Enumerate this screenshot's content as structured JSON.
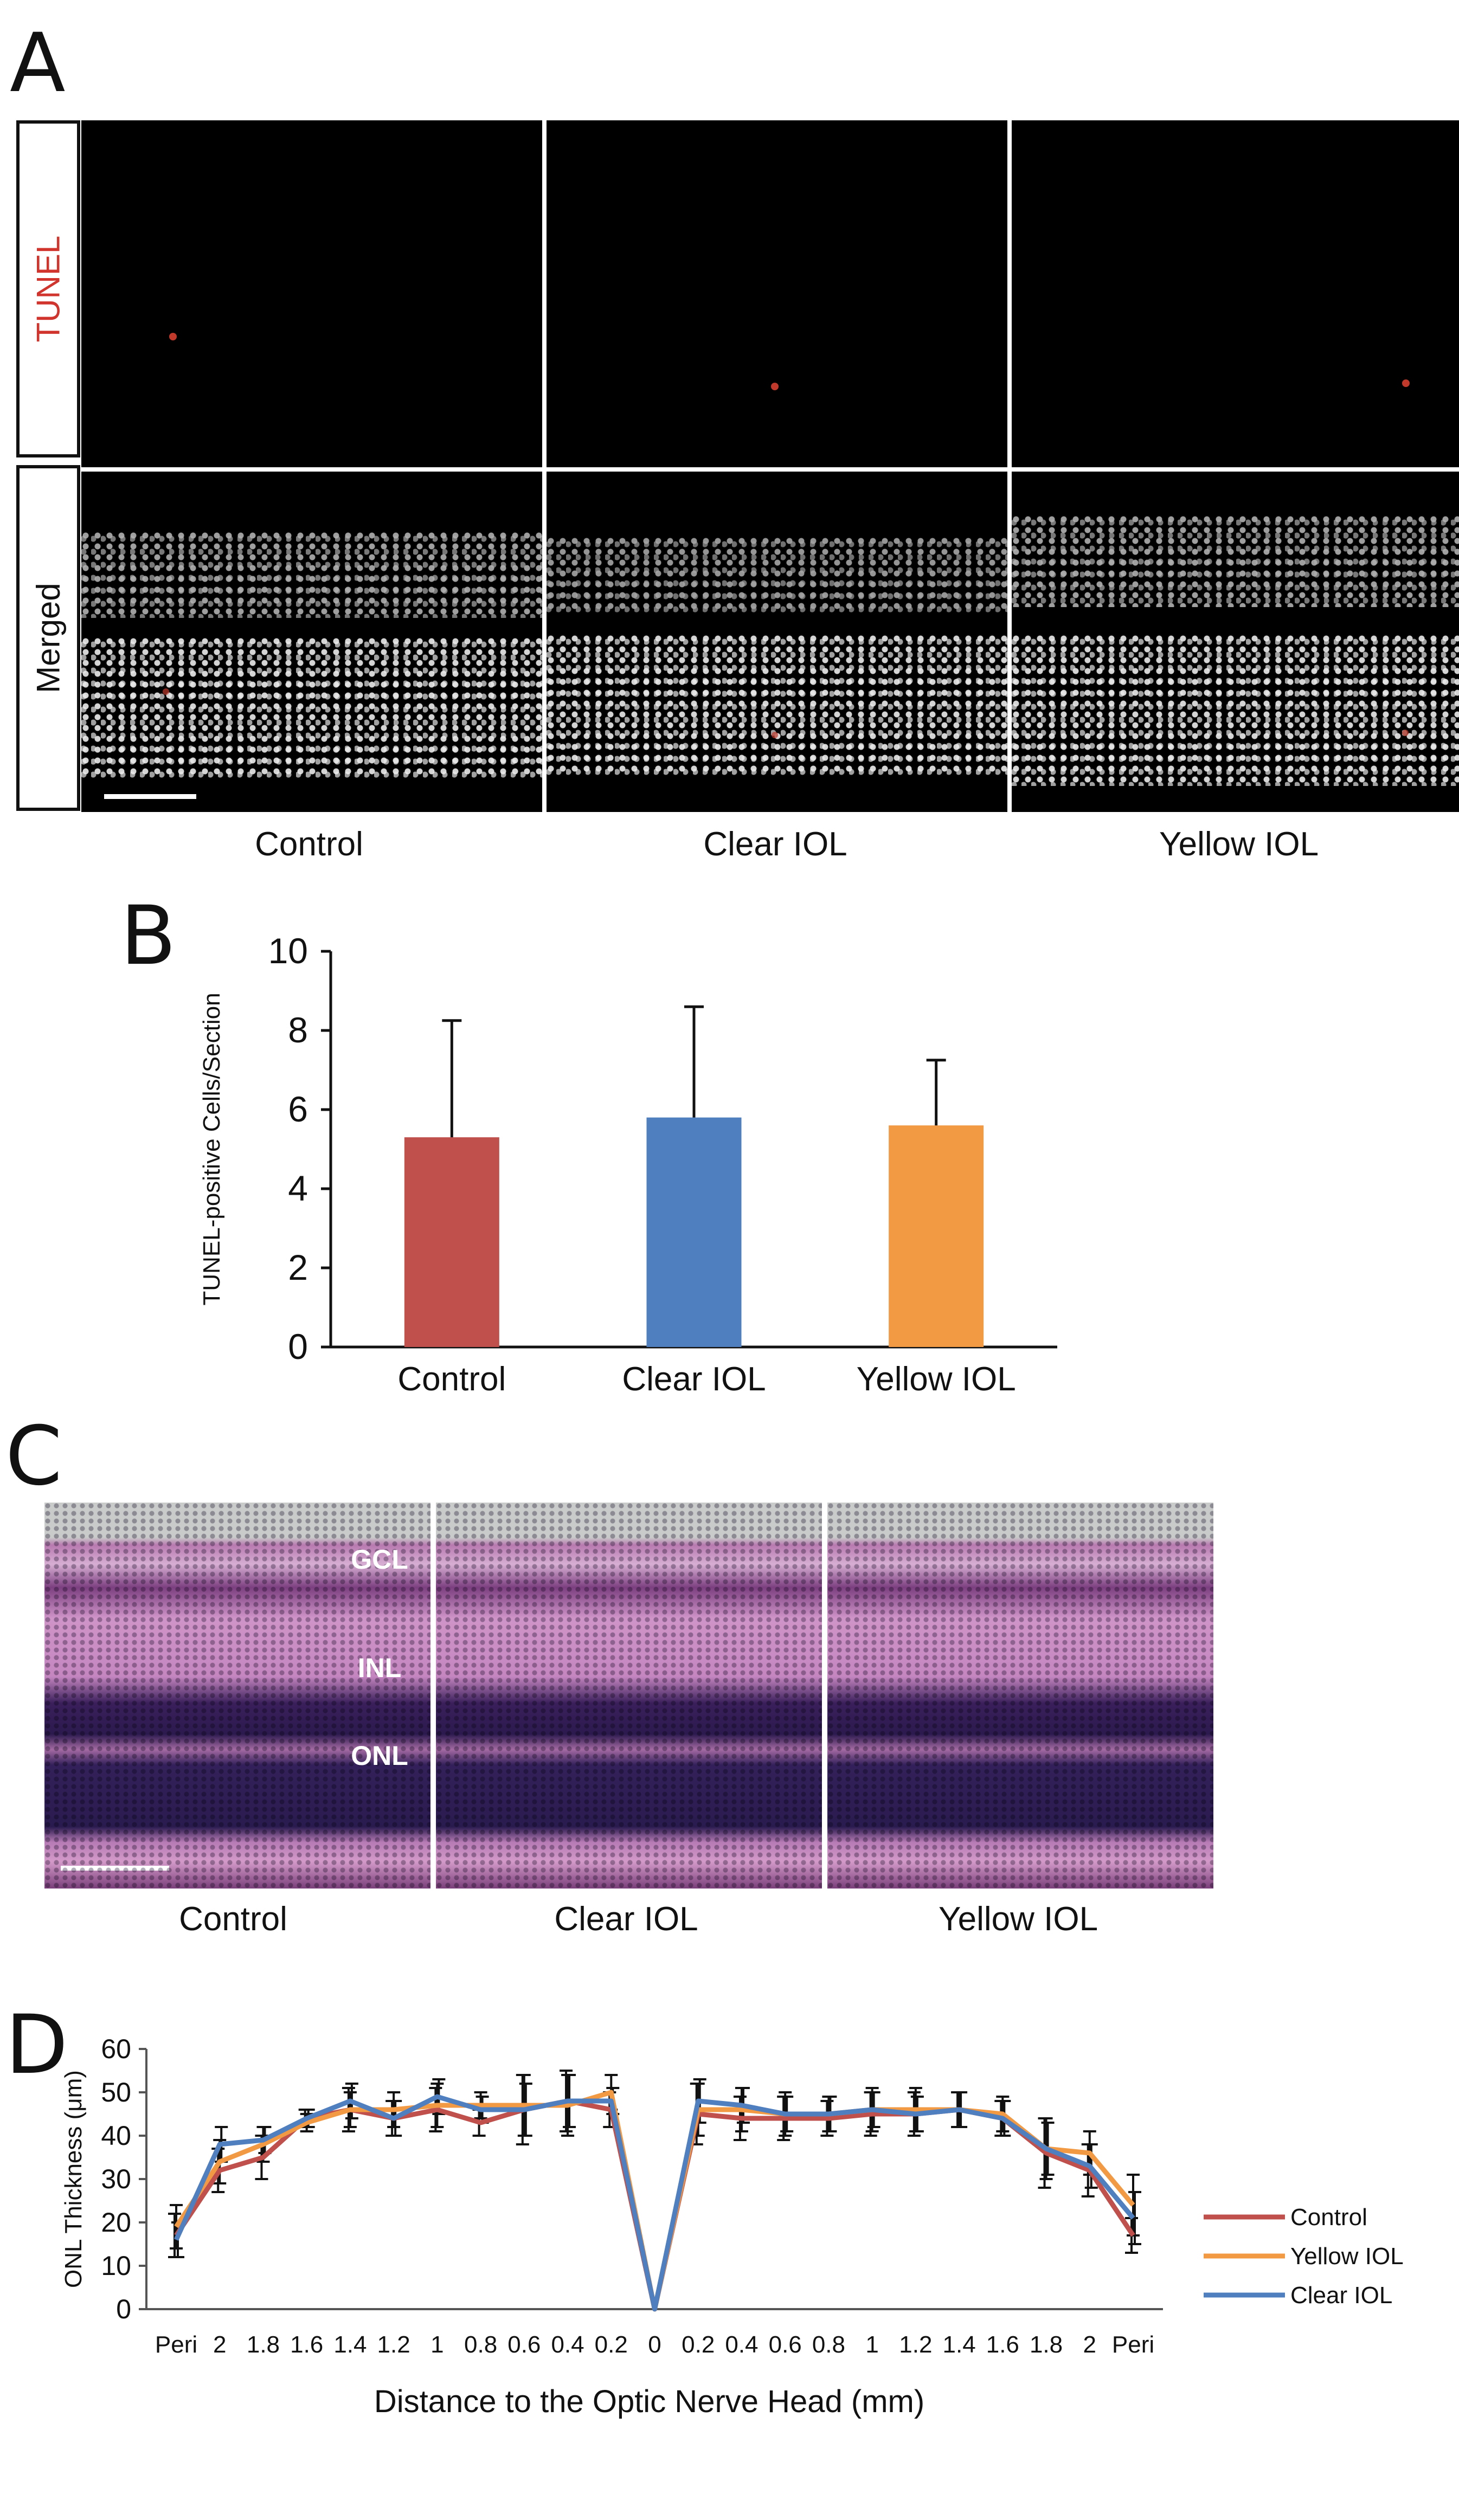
{
  "panel_a": {
    "letter": "A",
    "row_labels": [
      "TUNEL",
      "Merged"
    ],
    "row_label_colors": [
      "#d0342c",
      "#111111"
    ],
    "conditions": [
      "Control",
      "Clear IOL",
      "Yellow IOL"
    ]
  },
  "panel_b": {
    "letter": "B"
  },
  "panel_c": {
    "letter": "C",
    "layer_labels": [
      "GCL",
      "INL",
      "ONL"
    ],
    "conditions": [
      "Control",
      "Clear IOL",
      "Yellow IOL"
    ]
  },
  "panel_d": {
    "letter": "D"
  },
  "chart_data": [
    {
      "type": "bar",
      "panel": "B",
      "categories": [
        "Control",
        "Clear IOL",
        "Yellow IOL"
      ],
      "values": [
        5.3,
        5.8,
        5.6
      ],
      "errors": [
        2.95,
        2.8,
        1.65
      ],
      "colors": [
        "#bf504c",
        "#4f7fbe",
        "#f29944"
      ],
      "ylabel": "TUNEL-positive Cells/Section",
      "ylim": [
        0,
        10
      ],
      "yticks": [
        0,
        2,
        4,
        6,
        8,
        10
      ],
      "grid": false
    },
    {
      "type": "line",
      "panel": "D",
      "categories": [
        "Peri",
        "2",
        "1.8",
        "1.6",
        "1.4",
        "1.2",
        "1",
        "0.8",
        "0.6",
        "0.4",
        "0.2",
        "0",
        "0.2",
        "0.4",
        "0.6",
        "0.8",
        "1",
        "1.2",
        "1.4",
        "1.6",
        "1.8",
        "2",
        "Peri"
      ],
      "series": [
        {
          "name": "Control",
          "color": "#bf504c",
          "values": [
            17,
            32,
            35,
            44,
            46,
            44,
            46,
            43,
            46,
            48,
            46,
            0,
            45,
            44,
            44,
            44,
            45,
            45,
            46,
            44,
            36,
            32,
            17
          ],
          "errors": [
            5,
            5,
            5,
            2,
            5,
            4,
            5,
            3,
            8,
            7,
            4,
            0,
            7,
            5,
            5,
            4,
            5,
            5,
            4,
            4,
            8,
            6,
            4
          ]
        },
        {
          "name": "Yellow IOL",
          "color": "#f29944",
          "values": [
            19,
            34,
            38,
            43,
            46,
            46,
            47,
            47,
            47,
            47,
            50,
            0,
            46,
            46,
            45,
            45,
            46,
            46,
            46,
            45,
            37,
            36,
            24
          ],
          "errors": [
            5,
            5,
            4,
            2,
            4,
            4,
            5,
            3,
            7,
            7,
            4,
            0,
            6,
            5,
            5,
            4,
            5,
            5,
            4,
            4,
            7,
            5,
            7
          ]
        },
        {
          "name": "Clear IOL",
          "color": "#4f7fbe",
          "values": [
            16,
            38,
            39,
            44,
            48,
            44,
            49,
            46,
            46,
            48,
            48,
            0,
            48,
            47,
            45,
            45,
            46,
            45,
            46,
            44,
            37,
            33,
            21
          ],
          "errors": [
            4,
            4,
            3,
            2,
            4,
            4,
            4,
            3,
            6,
            6,
            3,
            0,
            5,
            4,
            4,
            4,
            4,
            4,
            4,
            4,
            6,
            5,
            6
          ]
        }
      ],
      "xlabel": "Distance to the Optic Nerve Head (mm)",
      "ylabel": "ONL Thickness (μm)",
      "ylim": [
        0,
        60
      ],
      "yticks": [
        0,
        10,
        20,
        30,
        40,
        50,
        60
      ],
      "legend": "right",
      "grid": false
    }
  ]
}
